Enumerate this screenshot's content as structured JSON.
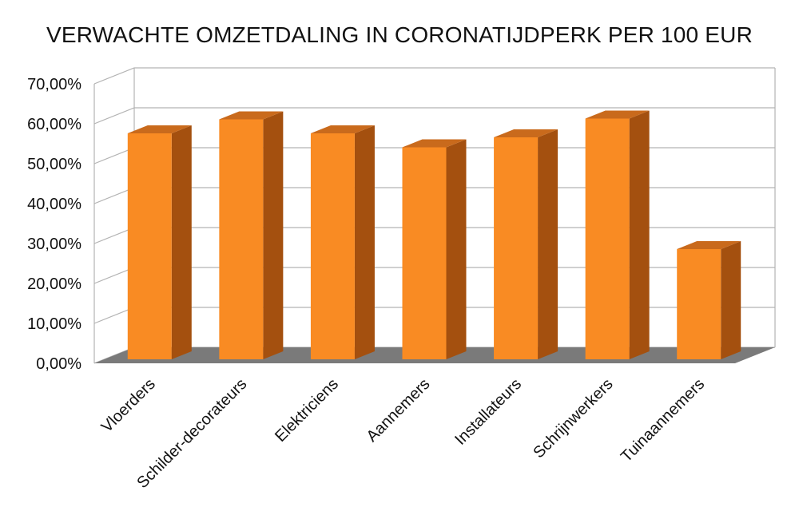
{
  "chart_data": {
    "type": "bar",
    "title": "VERWACHTE OMZETDALING IN CORONATIJDPERK PER 100 EUR",
    "categories": [
      "Vloerders",
      "Schilder-decorateurs",
      "Elektriciens",
      "Aannemers",
      "Installateurs",
      "Schrijnwerkers",
      "Tuinaannemers"
    ],
    "series": [
      {
        "values": [
          0.58,
          0.615,
          0.58,
          0.545,
          0.57,
          0.617,
          0.29
        ]
      }
    ],
    "y_ticks": [
      "0,00%",
      "10,00%",
      "20,00%",
      "30,00%",
      "40,00%",
      "50,00%",
      "60,00%",
      "70,00%"
    ],
    "ylim": [
      0,
      0.7
    ],
    "grid": true,
    "style": "3d",
    "colors": {
      "bar_front": "#f98b23",
      "bar_side": "#a4500f",
      "bar_top": "#c96a1c",
      "floor": "#7a7a7a",
      "grid": "#b3b3b3"
    }
  }
}
